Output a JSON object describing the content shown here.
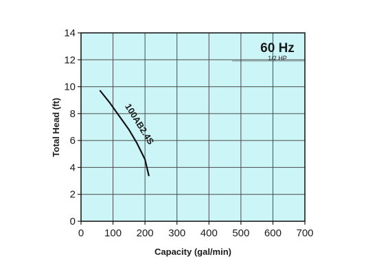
{
  "chart_data": {
    "type": "line",
    "title": "60 Hz",
    "subtitle": "1/2 HP",
    "xlabel": "Capacity (gal/min)",
    "ylabel": "Total Head (ft)",
    "xlim": [
      0,
      700
    ],
    "ylim": [
      0,
      14
    ],
    "xticks": [
      "0",
      "100",
      "200",
      "300",
      "400",
      "500",
      "600",
      "700"
    ],
    "yticks": [
      "0",
      "2",
      "4",
      "6",
      "8",
      "10",
      "12",
      "14"
    ],
    "grid": true,
    "colors": {
      "plot_background": "#ccf5f7",
      "grid": "#4a4a4a",
      "curve": "#111111"
    },
    "series": [
      {
        "name": "100AB2.4S",
        "x": [
          60,
          90,
          120,
          150,
          175,
          200,
          212
        ],
        "y": [
          9.7,
          8.8,
          7.8,
          6.8,
          5.8,
          4.6,
          3.4
        ]
      }
    ]
  }
}
